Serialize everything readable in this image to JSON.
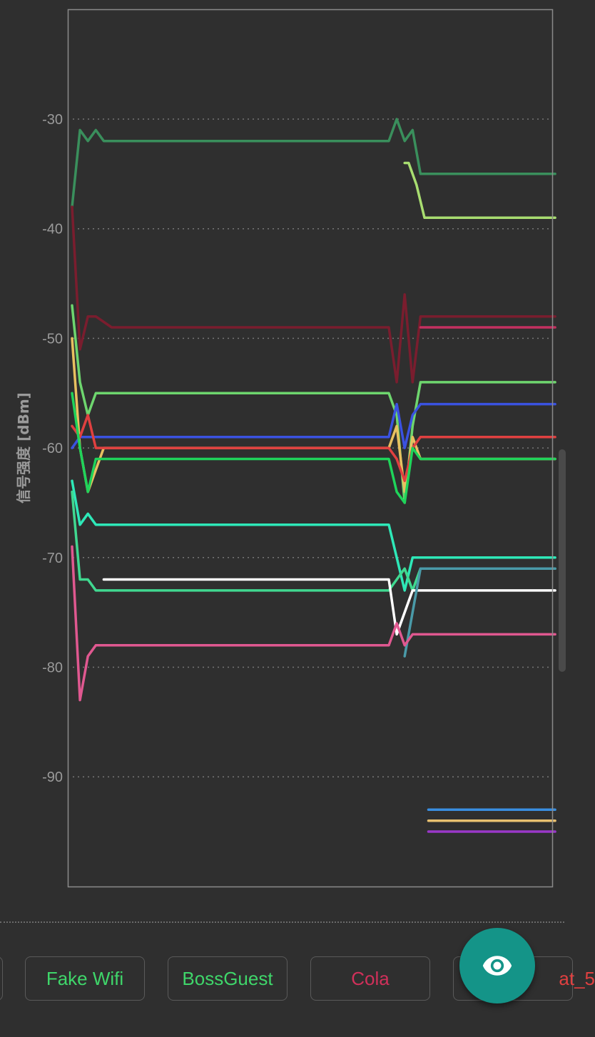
{
  "chart_data": {
    "type": "line",
    "ylabel": "信号强度 [dBm]",
    "ylim": [
      -100,
      -20
    ],
    "yticks": [
      -30,
      -40,
      -50,
      -60,
      -70,
      -80,
      -90
    ],
    "grid": true,
    "series": [
      {
        "color": "#3a8f5c",
        "points": [
          [
            0,
            -38
          ],
          [
            1,
            -31
          ],
          [
            2,
            -32
          ],
          [
            3,
            -31
          ],
          [
            4,
            -32
          ],
          [
            40,
            -32
          ],
          [
            41,
            -30
          ],
          [
            42,
            -32
          ],
          [
            43,
            -31
          ],
          [
            44,
            -35
          ],
          [
            61,
            -35
          ]
        ]
      },
      {
        "color": "#a8dd70",
        "points": [
          [
            42,
            -34
          ],
          [
            42.5,
            -34
          ],
          [
            43.5,
            -36
          ],
          [
            44.5,
            -39
          ],
          [
            61,
            -39
          ]
        ]
      },
      {
        "color": "#7a1d2e",
        "points": [
          [
            0,
            -38
          ],
          [
            1,
            -51
          ],
          [
            2,
            -48
          ],
          [
            3,
            -48
          ],
          [
            5,
            -49
          ],
          [
            40,
            -49
          ],
          [
            41,
            -54
          ],
          [
            42,
            -46
          ],
          [
            43,
            -54
          ],
          [
            44,
            -48
          ],
          [
            61,
            -48
          ]
        ]
      },
      {
        "color": "#c43060",
        "points": [
          [
            44,
            -49
          ],
          [
            61,
            -49
          ]
        ]
      },
      {
        "color": "#6ed66e",
        "points": [
          [
            0,
            -47
          ],
          [
            1,
            -54
          ],
          [
            2,
            -57
          ],
          [
            3,
            -55
          ],
          [
            40,
            -55
          ],
          [
            41,
            -57
          ],
          [
            42,
            -65
          ],
          [
            43,
            -58
          ],
          [
            44,
            -54
          ],
          [
            61,
            -54
          ]
        ]
      },
      {
        "color": "#e8c060",
        "points": [
          [
            0,
            -50
          ],
          [
            1,
            -60
          ],
          [
            2,
            -64
          ],
          [
            3,
            -62
          ],
          [
            4,
            -60
          ],
          [
            40,
            -60
          ],
          [
            41,
            -58
          ],
          [
            42,
            -64
          ],
          [
            43,
            -59
          ],
          [
            44,
            -61
          ],
          [
            61,
            -61
          ]
        ]
      },
      {
        "color": "#3a52e0",
        "points": [
          [
            0,
            -60
          ],
          [
            1,
            -59
          ],
          [
            40,
            -59
          ],
          [
            41,
            -56
          ],
          [
            42,
            -60
          ],
          [
            43,
            -57
          ],
          [
            44,
            -56
          ],
          [
            61,
            -56
          ]
        ]
      },
      {
        "color": "#e04040",
        "points": [
          [
            0,
            -58
          ],
          [
            1,
            -59
          ],
          [
            2,
            -57
          ],
          [
            3,
            -60
          ],
          [
            40,
            -60
          ],
          [
            41,
            -61
          ],
          [
            42,
            -63
          ],
          [
            43,
            -60
          ],
          [
            44,
            -59
          ],
          [
            61,
            -59
          ]
        ]
      },
      {
        "color": "#1fd45a",
        "points": [
          [
            0,
            -55
          ],
          [
            1,
            -60
          ],
          [
            2,
            -64
          ],
          [
            3,
            -61
          ],
          [
            40,
            -61
          ],
          [
            41,
            -64
          ],
          [
            42,
            -65
          ],
          [
            43,
            -60
          ],
          [
            44,
            -61
          ],
          [
            61,
            -61
          ]
        ]
      },
      {
        "color": "#2ee8b8",
        "points": [
          [
            0,
            -63
          ],
          [
            1,
            -67
          ],
          [
            2,
            -66
          ],
          [
            3,
            -67
          ],
          [
            40,
            -67
          ],
          [
            41,
            -70
          ],
          [
            42,
            -73
          ],
          [
            43,
            -70
          ],
          [
            61,
            -70
          ]
        ]
      },
      {
        "color": "#40d890",
        "points": [
          [
            0,
            -64
          ],
          [
            1,
            -72
          ],
          [
            2,
            -72
          ],
          [
            3,
            -73
          ],
          [
            40,
            -73
          ],
          [
            41,
            -72
          ],
          [
            42,
            -71
          ],
          [
            43,
            -73
          ],
          [
            44,
            -71
          ],
          [
            61,
            -71
          ]
        ]
      },
      {
        "color": "#ffffff",
        "points": [
          [
            4,
            -72
          ],
          [
            40,
            -72
          ],
          [
            41,
            -77
          ],
          [
            42,
            -75
          ],
          [
            43,
            -73
          ],
          [
            61,
            -73
          ]
        ]
      },
      {
        "color": "#4a9aa8",
        "points": [
          [
            42,
            -79
          ],
          [
            43,
            -75
          ],
          [
            44,
            -71
          ],
          [
            61,
            -71
          ]
        ]
      },
      {
        "color": "#e05890",
        "points": [
          [
            0,
            -69
          ],
          [
            1,
            -83
          ],
          [
            2,
            -79
          ],
          [
            3,
            -78
          ],
          [
            40,
            -78
          ],
          [
            41,
            -76
          ],
          [
            42,
            -78
          ],
          [
            43,
            -77
          ],
          [
            61,
            -77
          ]
        ]
      },
      {
        "color": "#3a8ee0",
        "points": [
          [
            45,
            -93
          ],
          [
            61,
            -93
          ]
        ]
      },
      {
        "color": "#e8c070",
        "points": [
          [
            45,
            -94
          ],
          [
            61,
            -94
          ]
        ]
      },
      {
        "color": "#9a38c8",
        "points": [
          [
            45,
            -95
          ],
          [
            61,
            -95
          ]
        ]
      }
    ]
  },
  "networks": [
    {
      "label": "Fake Wifi",
      "color": "#3fd66a"
    },
    {
      "label": "BossGuest",
      "color": "#3fd66a"
    },
    {
      "label": "Cola",
      "color": "#d0305a"
    },
    {
      "label": "at_5",
      "color": "#e04040"
    }
  ],
  "fab": {
    "icon": "eye-icon"
  }
}
